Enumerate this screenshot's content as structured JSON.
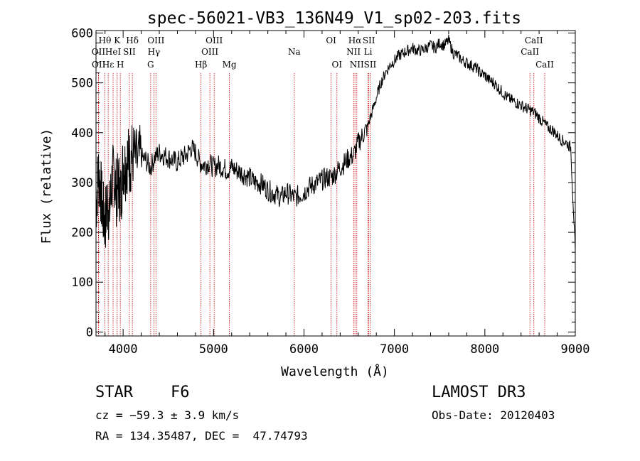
{
  "chart_data": {
    "type": "line",
    "title": "spec-56021-VB3_136N49_V1_sp02-203.fits",
    "xlabel": "Wavelength (Å)",
    "ylabel": "Flux (relative)",
    "xlim": [
      3700,
      9000
    ],
    "ylim": [
      -8,
      605
    ],
    "x_ticks": [
      4000,
      5000,
      6000,
      7000,
      8000,
      9000
    ],
    "y_ticks": [
      0,
      100,
      200,
      300,
      400,
      500,
      600
    ],
    "grid": false,
    "series": [
      {
        "name": "flux",
        "x": [
          3700,
          3725,
          3750,
          3775,
          3800,
          3825,
          3850,
          3875,
          3900,
          3925,
          3950,
          3975,
          4000,
          4025,
          4050,
          4075,
          4100,
          4150,
          4200,
          4250,
          4300,
          4350,
          4400,
          4450,
          4500,
          4550,
          4600,
          4650,
          4700,
          4750,
          4800,
          4850,
          4900,
          4950,
          5000,
          5050,
          5100,
          5150,
          5200,
          5250,
          5300,
          5350,
          5400,
          5450,
          5500,
          5550,
          5600,
          5650,
          5700,
          5750,
          5800,
          5850,
          5900,
          5950,
          6000,
          6050,
          6100,
          6150,
          6200,
          6250,
          6300,
          6350,
          6400,
          6450,
          6500,
          6550,
          6600,
          6650,
          6700,
          6750,
          6800,
          6850,
          6900,
          6950,
          7000,
          7050,
          7100,
          7150,
          7200,
          7250,
          7300,
          7350,
          7400,
          7450,
          7500,
          7550,
          7600,
          7650,
          7700,
          7750,
          7800,
          7850,
          7900,
          7950,
          8000,
          8050,
          8100,
          8150,
          8200,
          8250,
          8300,
          8350,
          8400,
          8450,
          8500,
          8550,
          8600,
          8650,
          8700,
          8750,
          8800,
          8850,
          8900,
          8950,
          9000
        ],
        "values": [
          250,
          320,
          290,
          240,
          220,
          260,
          240,
          300,
          320,
          280,
          300,
          270,
          340,
          330,
          350,
          340,
          360,
          340,
          350,
          345,
          330,
          350,
          360,
          355,
          350,
          345,
          340,
          350,
          355,
          370,
          360,
          340,
          335,
          340,
          330,
          335,
          330,
          325,
          330,
          325,
          320,
          315,
          310,
          300,
          300,
          295,
          285,
          280,
          275,
          270,
          280,
          275,
          270,
          275,
          280,
          290,
          295,
          300,
          305,
          310,
          310,
          320,
          330,
          340,
          350,
          355,
          380,
          395,
          410,
          440,
          470,
          500,
          520,
          535,
          545,
          555,
          560,
          565,
          570,
          565,
          565,
          570,
          575,
          570,
          580,
          575,
          585,
          560,
          555,
          545,
          540,
          535,
          530,
          520,
          515,
          505,
          500,
          490,
          480,
          470,
          465,
          460,
          455,
          450,
          445,
          440,
          430,
          420,
          410,
          405,
          395,
          385,
          380,
          370,
          160
        ],
        "color": "#000000"
      }
    ],
    "line_markers": [
      {
        "label": "Hθ",
        "x": 3798,
        "tier": 1
      },
      {
        "label": "OII",
        "x": 3727,
        "tier": 2
      },
      {
        "label": "OII",
        "x": 3729,
        "tier": 3
      },
      {
        "label": "Hε",
        "x": 3835,
        "tier": 3
      },
      {
        "label": "K",
        "x": 3934,
        "tier": 1
      },
      {
        "label": "H",
        "x": 3969,
        "tier": 3
      },
      {
        "label": "HeI",
        "x": 3889,
        "tier": 2
      },
      {
        "label": "SII",
        "x": 4069,
        "tier": 2
      },
      {
        "label": "Hδ",
        "x": 4102,
        "tier": 1
      },
      {
        "label": "OIII",
        "x": 4363,
        "tier": 1
      },
      {
        "label": "Hγ",
        "x": 4340,
        "tier": 2
      },
      {
        "label": "G",
        "x": 4304,
        "tier": 3
      },
      {
        "label": "Hβ",
        "x": 4861,
        "tier": 3
      },
      {
        "label": "OIII",
        "x": 5007,
        "tier": 1
      },
      {
        "label": "OIII",
        "x": 4959,
        "tier": 2
      },
      {
        "label": "Mg",
        "x": 5175,
        "tier": 3
      },
      {
        "label": "Na",
        "x": 5893,
        "tier": 2
      },
      {
        "label": "OI",
        "x": 6300,
        "tier": 1
      },
      {
        "label": "OI",
        "x": 6364,
        "tier": 3
      },
      {
        "label": "Hα",
        "x": 6563,
        "tier": 1
      },
      {
        "label": "NII",
        "x": 6548,
        "tier": 2
      },
      {
        "label": "NII",
        "x": 6584,
        "tier": 3
      },
      {
        "label": "SII",
        "x": 6717,
        "tier": 1
      },
      {
        "label": "Li",
        "x": 6708,
        "tier": 2
      },
      {
        "label": "SII",
        "x": 6731,
        "tier": 3
      },
      {
        "label": "CaII",
        "x": 8542,
        "tier": 1
      },
      {
        "label": "CaII",
        "x": 8498,
        "tier": 2
      },
      {
        "label": "CaII",
        "x": 8662,
        "tier": 3
      }
    ],
    "marker_color": "#cc0000"
  },
  "info": {
    "object_class": "STAR",
    "subclass": "F6",
    "survey": "LAMOST DR3",
    "redshift": "cz = −59.3 ± 3.9 km/s",
    "obs_date": "Obs-Date: 20120403",
    "coords": "RA = 134.35487, DEC =  47.74793"
  }
}
